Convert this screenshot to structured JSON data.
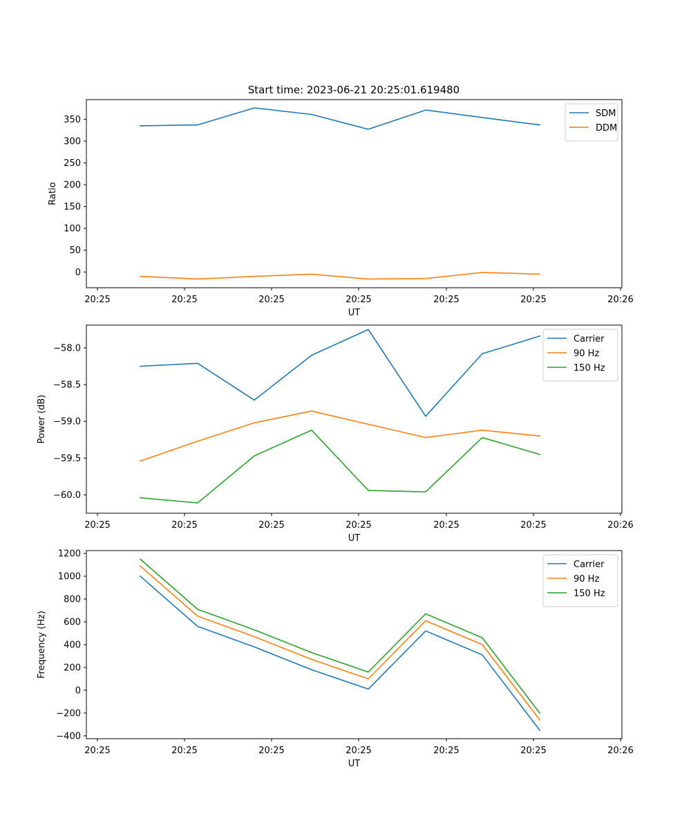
{
  "figure": {
    "title": "Start time: 2023-06-21 20:25:01.619480"
  },
  "chart_data": [
    {
      "type": "line",
      "title": "Start time: 2023-06-21 20:25:01.619480",
      "xlabel": "UT",
      "ylabel": "Ratio",
      "x_tick_labels": [
        "20:25",
        "20:25",
        "20:25",
        "20:25",
        "20:25",
        "20:25",
        "20:26"
      ],
      "yticks": [
        0,
        50,
        100,
        150,
        200,
        250,
        300,
        350
      ],
      "ylim": [
        -36,
        395
      ],
      "x_points": 8,
      "grid": false,
      "legend_position": "top-right",
      "series": [
        {
          "name": "SDM",
          "color": "#1f77b4",
          "values": [
            335,
            337,
            376,
            361,
            327,
            371,
            354,
            337
          ]
        },
        {
          "name": "DDM",
          "color": "#ff7f0e",
          "values": [
            -10,
            -16,
            -10,
            -5,
            -16,
            -15,
            -1,
            -5
          ]
        }
      ]
    },
    {
      "type": "line",
      "title": "",
      "xlabel": "UT",
      "ylabel": "Power (dB)",
      "x_tick_labels": [
        "20:25",
        "20:25",
        "20:25",
        "20:25",
        "20:25",
        "20:25",
        "20:26"
      ],
      "yticks": [
        -60.0,
        -59.5,
        -59.0,
        -58.5,
        -58.0
      ],
      "ytick_labels": [
        "−60.0",
        "−59.5",
        "−59.0",
        "−58.5",
        "−58.0"
      ],
      "ylim": [
        -60.25,
        -57.69
      ],
      "x_points": 8,
      "grid": false,
      "legend_position": "top-right",
      "series": [
        {
          "name": "Carrier",
          "color": "#1f77b4",
          "values": [
            -58.25,
            -58.21,
            -58.71,
            -58.1,
            -57.75,
            -58.93,
            -58.08,
            -57.84
          ]
        },
        {
          "name": "90 Hz",
          "color": "#ff7f0e",
          "values": [
            -59.54,
            -59.27,
            -59.02,
            -58.86,
            -59.04,
            -59.22,
            -59.12,
            -59.2
          ]
        },
        {
          "name": "150 Hz",
          "color": "#2ca02c",
          "values": [
            -60.04,
            -60.11,
            -59.47,
            -59.12,
            -59.94,
            -59.96,
            -59.22,
            -59.45
          ]
        }
      ]
    },
    {
      "type": "line",
      "title": "",
      "xlabel": "UT",
      "ylabel": "Frequency (Hz)",
      "x_tick_labels": [
        "20:25",
        "20:25",
        "20:25",
        "20:25",
        "20:25",
        "20:25",
        "20:26"
      ],
      "yticks": [
        -400,
        -200,
        0,
        200,
        400,
        600,
        800,
        1000,
        1200
      ],
      "ytick_labels": [
        "−400",
        "−200",
        "0",
        "200",
        "400",
        "600",
        "800",
        "1000",
        "1200"
      ],
      "ylim": [
        -425,
        1225
      ],
      "x_points": 8,
      "grid": false,
      "legend_position": "top-right",
      "series": [
        {
          "name": "Carrier",
          "color": "#1f77b4",
          "values": [
            1000,
            560,
            380,
            180,
            10,
            520,
            310,
            -350
          ]
        },
        {
          "name": "90 Hz",
          "color": "#ff7f0e",
          "values": [
            1090,
            650,
            470,
            270,
            100,
            610,
            400,
            -260
          ]
        },
        {
          "name": "150 Hz",
          "color": "#2ca02c",
          "values": [
            1150,
            710,
            530,
            330,
            160,
            670,
            460,
            -200
          ]
        }
      ]
    }
  ]
}
